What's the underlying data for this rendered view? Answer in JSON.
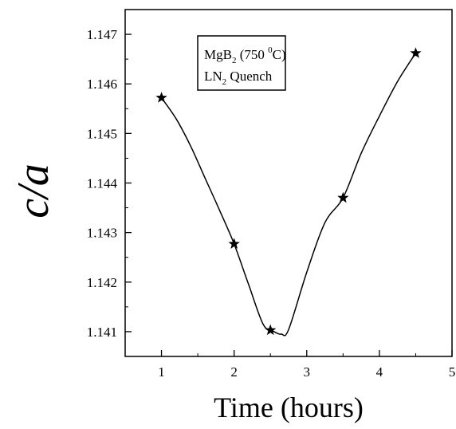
{
  "chart_data": {
    "type": "line",
    "xlabel": "Time (hours)",
    "ylabel": "c/a",
    "xlim": [
      0.5,
      5
    ],
    "ylim": [
      1.1405,
      1.1475
    ],
    "x_ticks": [
      1,
      2,
      3,
      4,
      5
    ],
    "y_ticks": [
      1.141,
      1.142,
      1.143,
      1.144,
      1.145,
      1.146,
      1.147
    ],
    "x_tick_labels": [
      "1",
      "2",
      "3",
      "4",
      "5"
    ],
    "y_tick_labels": [
      "1.141",
      "1.142",
      "1.143",
      "1.144",
      "1.145",
      "1.146",
      "1.147"
    ],
    "series": [
      {
        "marker": "star",
        "color": "#000000",
        "x": [
          1,
          2,
          2.5,
          3.5,
          4.5
        ],
        "y": [
          1.14572,
          1.14277,
          1.14103,
          1.1437,
          1.14662
        ],
        "curve_x": [
          1,
          1.2,
          1.4,
          1.6,
          1.8,
          2,
          2.2,
          2.4,
          2.55,
          2.65,
          2.75,
          3,
          3.25,
          3.5,
          3.75,
          4,
          4.25,
          4.5
        ],
        "curve_y": [
          1.14572,
          1.1453,
          1.14475,
          1.1441,
          1.14345,
          1.14277,
          1.14195,
          1.14115,
          1.141,
          1.14095,
          1.14104,
          1.1422,
          1.1432,
          1.1437,
          1.1446,
          1.14535,
          1.14605,
          1.14662
        ]
      }
    ],
    "legend": {
      "placement": "top-center",
      "line1": {
        "main": "MgB",
        "sub": "2",
        "after_sub": " (750 ",
        "sup": "0",
        "after_sup": "C)"
      },
      "line2": {
        "main": "LN",
        "sub": "2",
        "after_sub": " Quench"
      }
    }
  }
}
